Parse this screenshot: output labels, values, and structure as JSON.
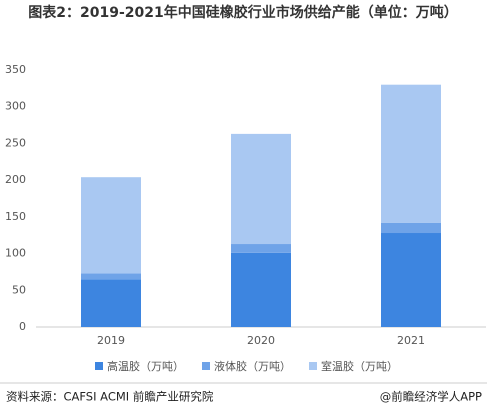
{
  "chart_data": {
    "type": "stacked-bar",
    "title": "图表2：2019-2021年中国硅橡胶行业市场供给产能（单位：万吨）",
    "categories": [
      "2019",
      "2020",
      "2021"
    ],
    "series": [
      {
        "name": "高温胶（万吨）",
        "color": "#3d85e0",
        "values": [
          65,
          101,
          128
        ]
      },
      {
        "name": "液体胶（万吨）",
        "color": "#6fa3e8",
        "values": [
          8,
          12,
          14
        ]
      },
      {
        "name": "室温胶（万吨）",
        "color": "#a9c8f2",
        "values": [
          131,
          150,
          188
        ]
      }
    ],
    "ylim": [
      0,
      350
    ],
    "yticks": [
      0,
      50,
      100,
      150,
      200,
      250,
      300,
      350
    ],
    "grid": false,
    "source": "资料来源：CAFSI ACMI 前瞻产业研究院",
    "brand": "@前瞻经济学人APP"
  }
}
